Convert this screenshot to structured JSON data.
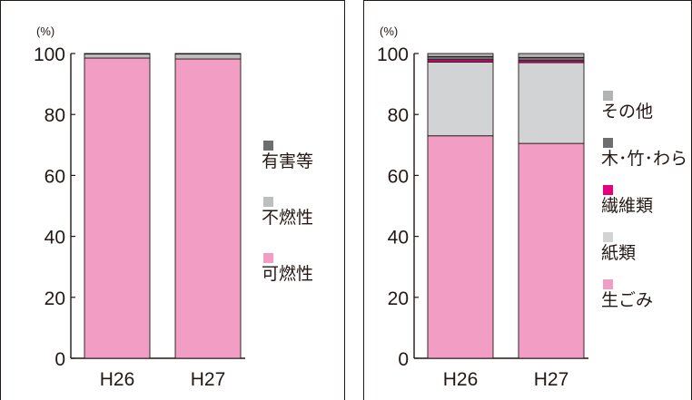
{
  "colors": {
    "frame": "#231815",
    "hazardous": "#6d6e70",
    "non_combustible": "#bcbec0",
    "combustible": "#f29dc3",
    "other": "#b2b3b5",
    "wood": "#6d6e70",
    "textile": "#e4007f",
    "paper": "#d1d3d4",
    "food": "#f29dc3"
  },
  "chart_data": [
    {
      "type": "bar",
      "stacked": true,
      "unit_label": "(%)",
      "categories": [
        "H26",
        "H27"
      ],
      "ylim": [
        0,
        100
      ],
      "yticks": [
        "0",
        "20",
        "40",
        "60",
        "80",
        "100"
      ],
      "series": [
        {
          "name": "可燃性",
          "color_key": "combustible",
          "values": [
            98.5,
            98.2
          ]
        },
        {
          "name": "不燃性",
          "color_key": "non_combustible",
          "values": [
            1.4,
            1.7
          ]
        },
        {
          "name": "有害等",
          "color_key": "hazardous",
          "values": [
            0.1,
            0.1
          ]
        }
      ],
      "legend": [
        "有害等",
        "不燃性",
        "可燃性"
      ],
      "legend_placement": "right"
    },
    {
      "type": "bar",
      "stacked": true,
      "unit_label": "(%)",
      "categories": [
        "H26",
        "H27"
      ],
      "ylim": [
        0,
        100
      ],
      "yticks": [
        "0",
        "20",
        "40",
        "60",
        "80",
        "100"
      ],
      "series": [
        {
          "name": "生ごみ",
          "color_key": "food",
          "values": [
            73.0,
            70.5
          ]
        },
        {
          "name": "紙類",
          "color_key": "paper",
          "values": [
            24.2,
            26.5
          ]
        },
        {
          "name": "繊維類",
          "color_key": "textile",
          "values": [
            0.8,
            0.7
          ]
        },
        {
          "name": "木･竹･わら",
          "color_key": "wood",
          "values": [
            1.0,
            1.0
          ]
        },
        {
          "name": "その他",
          "color_key": "other",
          "values": [
            1.0,
            1.3
          ]
        }
      ],
      "legend": [
        "その他",
        "木･竹･わら",
        "繊維類",
        "紙類",
        "生ごみ"
      ],
      "legend_placement": "right"
    }
  ]
}
